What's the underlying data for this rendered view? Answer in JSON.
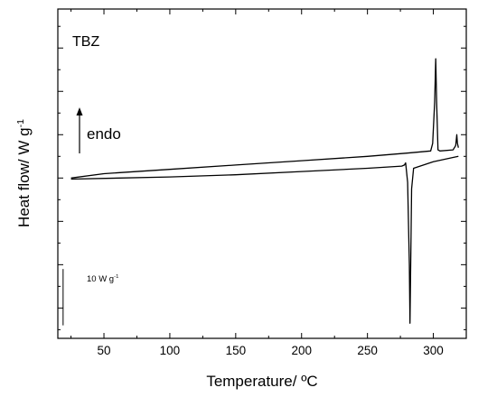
{
  "chart_data": {
    "type": "line",
    "sample_label": "TBZ",
    "xlabel": "Temperature/ ºC",
    "ylabel": {
      "text": "Heat flow/ W g",
      "sup": "-1"
    },
    "xlim": [
      15,
      325
    ],
    "ylim": [
      -7.4,
      7.8
    ],
    "x_ticks": [
      50,
      100,
      150,
      200,
      250,
      300
    ],
    "x_tick_labels": [
      "50",
      "100",
      "150",
      "200",
      "250",
      "300"
    ],
    "y_ticks_unlabeled": [
      -6,
      -4,
      -2,
      0,
      2,
      4,
      6
    ],
    "direction_annotation": {
      "text": "endo",
      "arrow": "up"
    },
    "scale_bar": {
      "text": "10 W g",
      "sup": "-1",
      "length_w_per_g": 10,
      "y_from": -4.2,
      "x": 19
    },
    "grid": false,
    "legend": "none",
    "series": [
      {
        "x": [
          25,
          50,
          100,
          150,
          200,
          250,
          280,
          298,
          299.5,
          301,
          301.8,
          302.5,
          303.5,
          305,
          315,
          317,
          317.8,
          318.3,
          319
        ],
        "y": [
          0,
          0.2,
          0.4,
          0.6,
          0.8,
          1.0,
          1.15,
          1.25,
          1.6,
          3.5,
          5.5,
          3.5,
          1.3,
          1.25,
          1.3,
          1.5,
          2.0,
          1.6,
          1.4
        ]
      },
      {
        "x": [
          25,
          100,
          150,
          200,
          250,
          276,
          278,
          279,
          280.5,
          281.8,
          282.3,
          282.8,
          283.5,
          285,
          300,
          315,
          319
        ],
        "y": [
          -0.05,
          0.05,
          0.15,
          0.3,
          0.45,
          0.55,
          0.6,
          0.7,
          -0.2,
          -4,
          -6.7,
          -4,
          -0.5,
          0.45,
          0.75,
          0.95,
          1.0
        ]
      }
    ]
  }
}
